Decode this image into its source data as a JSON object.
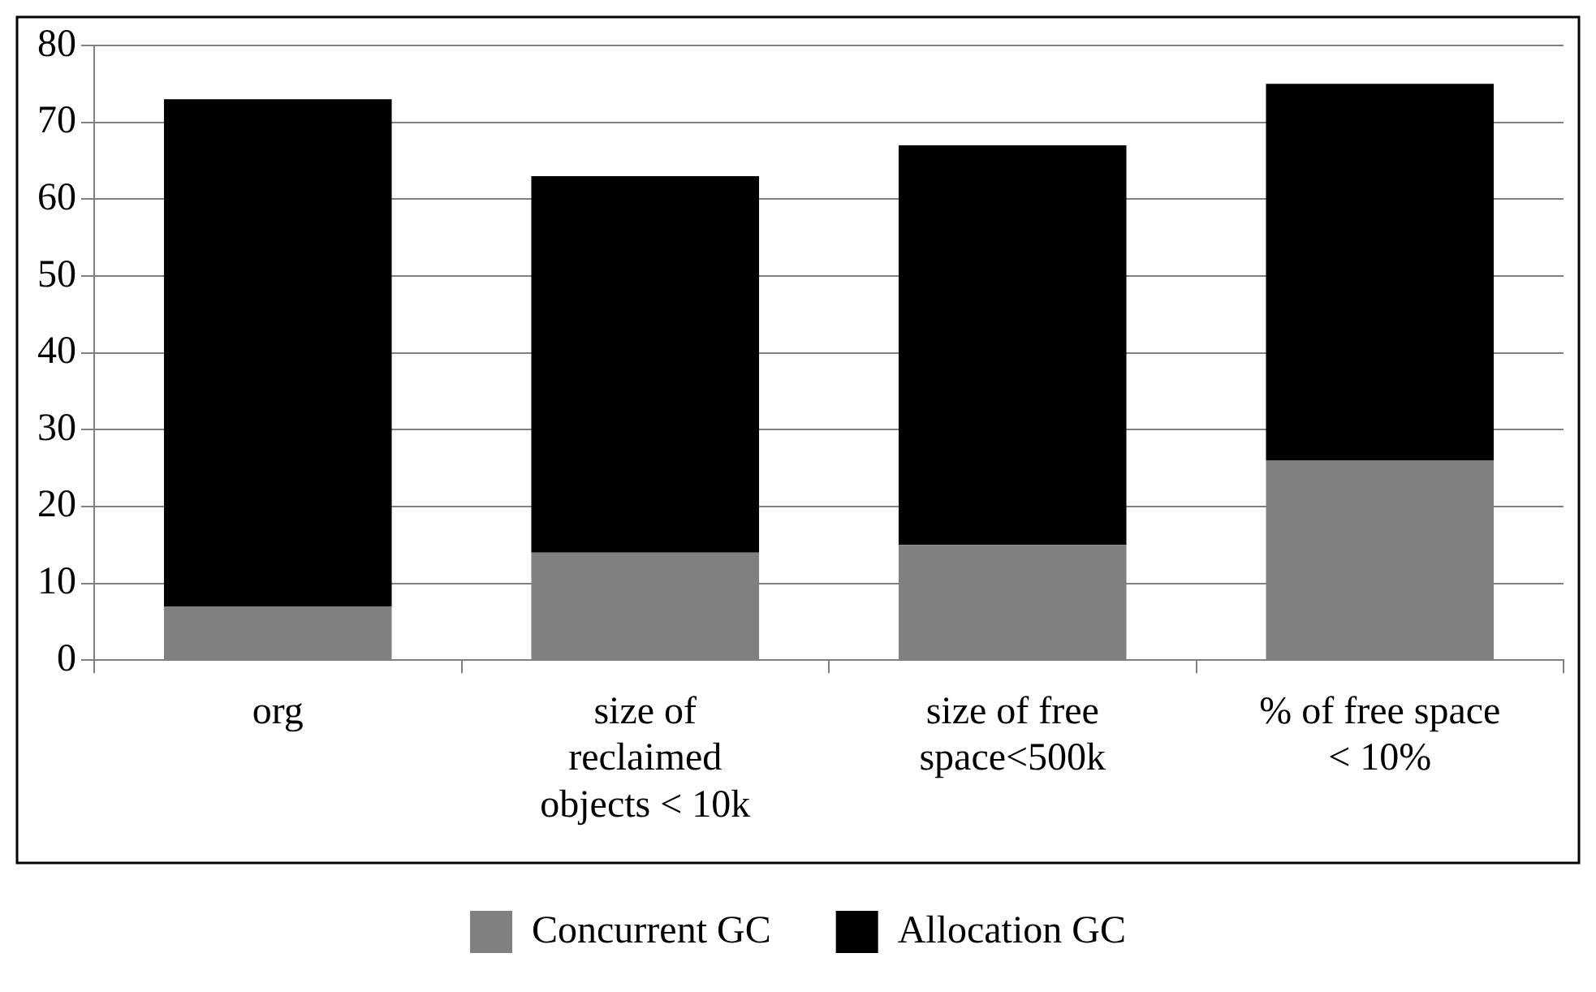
{
  "chart_data": {
    "type": "bar",
    "stacked": true,
    "categories": [
      "org",
      "size of reclaimed objects < 10k",
      "size of free space<500k",
      "% of free space < 10%"
    ],
    "series": [
      {
        "name": "Concurrent GC",
        "color": "#808080",
        "values": [
          7,
          14,
          15,
          26
        ]
      },
      {
        "name": "Allocation GC",
        "color": "#000000",
        "values": [
          66,
          49,
          52,
          49
        ]
      }
    ],
    "ylim": [
      0,
      80
    ],
    "yticks": [
      0,
      10,
      20,
      30,
      40,
      50,
      60,
      70,
      80
    ],
    "grid": "y",
    "legend": "bottom"
  }
}
